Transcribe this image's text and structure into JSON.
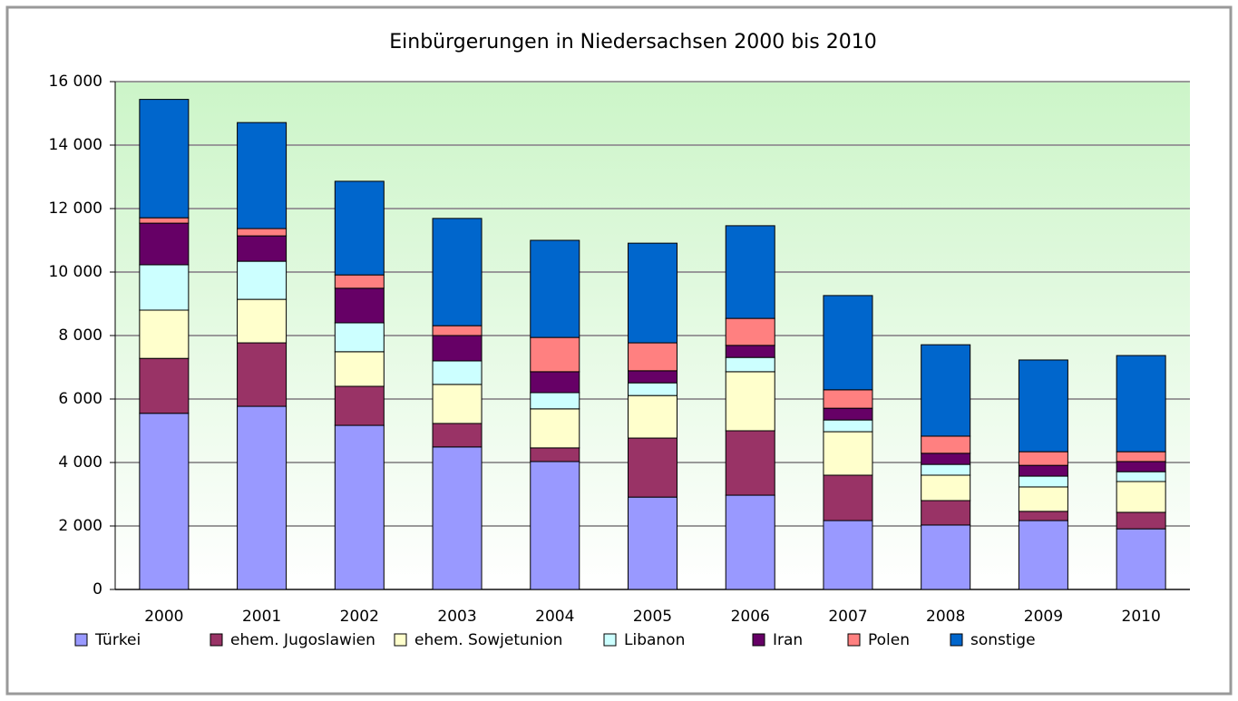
{
  "chart_data": {
    "type": "stacked_bar",
    "title": "Einbürgerungen in Niedersachsen 2000 bis 2010",
    "categories": [
      "2000",
      "2001",
      "2002",
      "2003",
      "2004",
      "2005",
      "2006",
      "2007",
      "2008",
      "2009",
      "2010"
    ],
    "series": [
      {
        "name": "Türkei",
        "color": "#9999ff",
        "values": [
          5550,
          5770,
          5170,
          4490,
          4030,
          2910,
          2970,
          2170,
          2030,
          2170,
          1910
        ]
      },
      {
        "name": "ehem. Jugoslawien",
        "color": "#993366",
        "values": [
          1730,
          2000,
          1230,
          740,
          430,
          1860,
          2030,
          1430,
          770,
          290,
          520
        ]
      },
      {
        "name": "ehem. Sowjetunion",
        "color": "#ffffcc",
        "values": [
          1520,
          1370,
          1090,
          1230,
          1230,
          1340,
          1860,
          1370,
          800,
          770,
          970
        ]
      },
      {
        "name": "Libanon",
        "color": "#ccffff",
        "values": [
          1430,
          1200,
          910,
          740,
          510,
          400,
          450,
          370,
          340,
          340,
          310
        ]
      },
      {
        "name": "Iran",
        "color": "#660066",
        "values": [
          1310,
          800,
          1090,
          800,
          660,
          380,
          380,
          370,
          350,
          340,
          320
        ]
      },
      {
        "name": "Polen",
        "color": "#ff8080",
        "values": [
          170,
          230,
          420,
          310,
          1080,
          880,
          850,
          580,
          540,
          430,
          310
        ]
      },
      {
        "name": "sonstige",
        "color": "#0066cc",
        "values": [
          3730,
          3340,
          2950,
          3380,
          3060,
          3140,
          2920,
          2970,
          2880,
          2890,
          3030
        ]
      }
    ],
    "ylim": [
      0,
      16000
    ],
    "yticks": [
      0,
      {
        "value": 2000,
        "label": "2 000"
      },
      {
        "value": 4000,
        "label": "4 000"
      },
      {
        "value": 6000,
        "label": "6 000"
      },
      {
        "value": 8000,
        "label": "8 000"
      },
      {
        "value": 10000,
        "label": "10 000"
      },
      {
        "value": 12000,
        "label": "12 000"
      },
      {
        "value": 14000,
        "label": "14 000"
      },
      {
        "value": 16000,
        "label": "16 000"
      }
    ],
    "grid": true,
    "legend": "bottom"
  }
}
